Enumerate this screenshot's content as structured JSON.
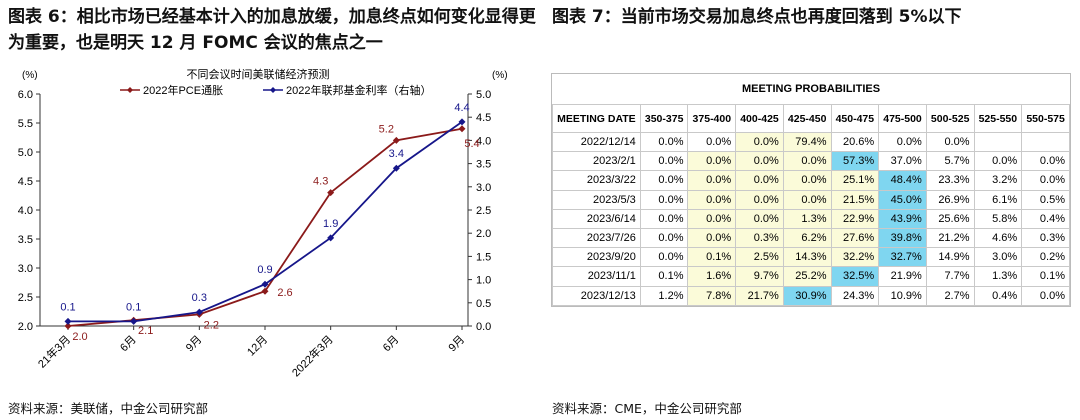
{
  "left": {
    "heading": "图表 6：相比市场已经基本计入的加息放缓，加息终点如何变化显得更为重要，也是明天 12 月 FOMC 会议的焦点之一",
    "source": "资料来源：美联储，中金公司研究部"
  },
  "right": {
    "heading": "图表 7：当前市场交易加息终点也再度回落到 5%以下",
    "source": "资料来源：CME，中金公司研究部"
  },
  "chart_data": {
    "type": "line",
    "title": "不同会议时间美联储经济预测",
    "categories": [
      "21年3月",
      "6月",
      "9月",
      "12月",
      "2022年3月",
      "6月",
      "9月"
    ],
    "left_unit": "(%)",
    "right_unit": "(%)",
    "left_ylim": [
      2.0,
      6.0
    ],
    "right_ylim": [
      0.0,
      5.0
    ],
    "left_ticks": [
      "2.0",
      "2.5",
      "3.0",
      "3.5",
      "4.0",
      "4.5",
      "5.0",
      "5.5",
      "6.0"
    ],
    "right_ticks": [
      "0.0",
      "0.5",
      "1.0",
      "1.5",
      "2.0",
      "2.5",
      "3.0",
      "3.5",
      "4.0",
      "4.5",
      "5.0"
    ],
    "series": [
      {
        "name": "2022年PCE通胀",
        "axis": "left",
        "color": "#8b1a1a",
        "values": [
          2.0,
          2.1,
          2.2,
          2.6,
          4.3,
          5.2,
          5.4
        ],
        "labels": [
          "2.0",
          "2.1",
          "2.2",
          "2.6",
          "4.3",
          "5.2",
          "5.4"
        ]
      },
      {
        "name": "2022年联邦基金利率（右轴）",
        "axis": "right",
        "color": "#16168a",
        "values": [
          0.1,
          0.1,
          0.3,
          0.9,
          1.9,
          3.4,
          4.4
        ],
        "labels": [
          "0.1",
          "0.1",
          "0.3",
          "0.9",
          "1.9",
          "3.4",
          "4.4"
        ]
      }
    ]
  },
  "table": {
    "title": "MEETING PROBABILITIES",
    "columns": [
      "MEETING DATE",
      "350-375",
      "375-400",
      "400-425",
      "425-450",
      "450-475",
      "475-500",
      "500-525",
      "525-550",
      "550-575"
    ],
    "rows": [
      {
        "date": "2022/12/14",
        "cells": [
          "0.0%",
          "0.0%",
          "0.0%",
          "79.4%",
          "20.6%",
          "0.0%",
          "0.0%",
          "",
          ""
        ]
      },
      {
        "date": "2023/2/1",
        "cells": [
          "0.0%",
          "0.0%",
          "0.0%",
          "0.0%",
          "57.3%",
          "37.0%",
          "5.7%",
          "0.0%",
          "0.0%"
        ]
      },
      {
        "date": "2023/3/22",
        "cells": [
          "0.0%",
          "0.0%",
          "0.0%",
          "0.0%",
          "25.1%",
          "48.4%",
          "23.3%",
          "3.2%",
          "0.0%"
        ]
      },
      {
        "date": "2023/5/3",
        "cells": [
          "0.0%",
          "0.0%",
          "0.0%",
          "0.0%",
          "21.5%",
          "45.0%",
          "26.9%",
          "6.1%",
          "0.5%"
        ]
      },
      {
        "date": "2023/6/14",
        "cells": [
          "0.0%",
          "0.0%",
          "0.0%",
          "1.3%",
          "22.9%",
          "43.9%",
          "25.6%",
          "5.8%",
          "0.4%"
        ]
      },
      {
        "date": "2023/7/26",
        "cells": [
          "0.0%",
          "0.0%",
          "0.3%",
          "6.2%",
          "27.6%",
          "39.8%",
          "21.2%",
          "4.6%",
          "0.3%"
        ]
      },
      {
        "date": "2023/9/20",
        "cells": [
          "0.0%",
          "0.1%",
          "2.5%",
          "14.3%",
          "32.2%",
          "32.7%",
          "14.9%",
          "3.0%",
          "0.2%"
        ]
      },
      {
        "date": "2023/11/1",
        "cells": [
          "0.1%",
          "1.6%",
          "9.7%",
          "25.2%",
          "32.5%",
          "21.9%",
          "7.7%",
          "1.3%",
          "0.1%"
        ]
      },
      {
        "date": "2023/12/13",
        "cells": [
          "1.2%",
          "7.8%",
          "21.7%",
          "30.9%",
          "24.3%",
          "10.9%",
          "2.7%",
          "0.4%",
          "0.0%"
        ]
      }
    ],
    "colors": {
      "yellow": "#fbfbd9",
      "cyan": "#7fd6f0"
    },
    "highlight": [
      [
        0,
        0,
        1,
        1,
        0,
        0,
        0,
        0,
        0
      ],
      [
        0,
        1,
        1,
        1,
        2,
        0,
        0,
        0,
        0
      ],
      [
        0,
        1,
        1,
        1,
        1,
        2,
        0,
        0,
        0
      ],
      [
        0,
        1,
        1,
        1,
        1,
        2,
        0,
        0,
        0
      ],
      [
        0,
        1,
        1,
        1,
        1,
        2,
        0,
        0,
        0
      ],
      [
        0,
        1,
        1,
        1,
        1,
        2,
        0,
        0,
        0
      ],
      [
        0,
        1,
        1,
        1,
        1,
        2,
        0,
        0,
        0
      ],
      [
        0,
        1,
        1,
        1,
        2,
        0,
        0,
        0,
        0
      ],
      [
        0,
        1,
        1,
        2,
        0,
        0,
        0,
        0,
        0
      ]
    ]
  }
}
